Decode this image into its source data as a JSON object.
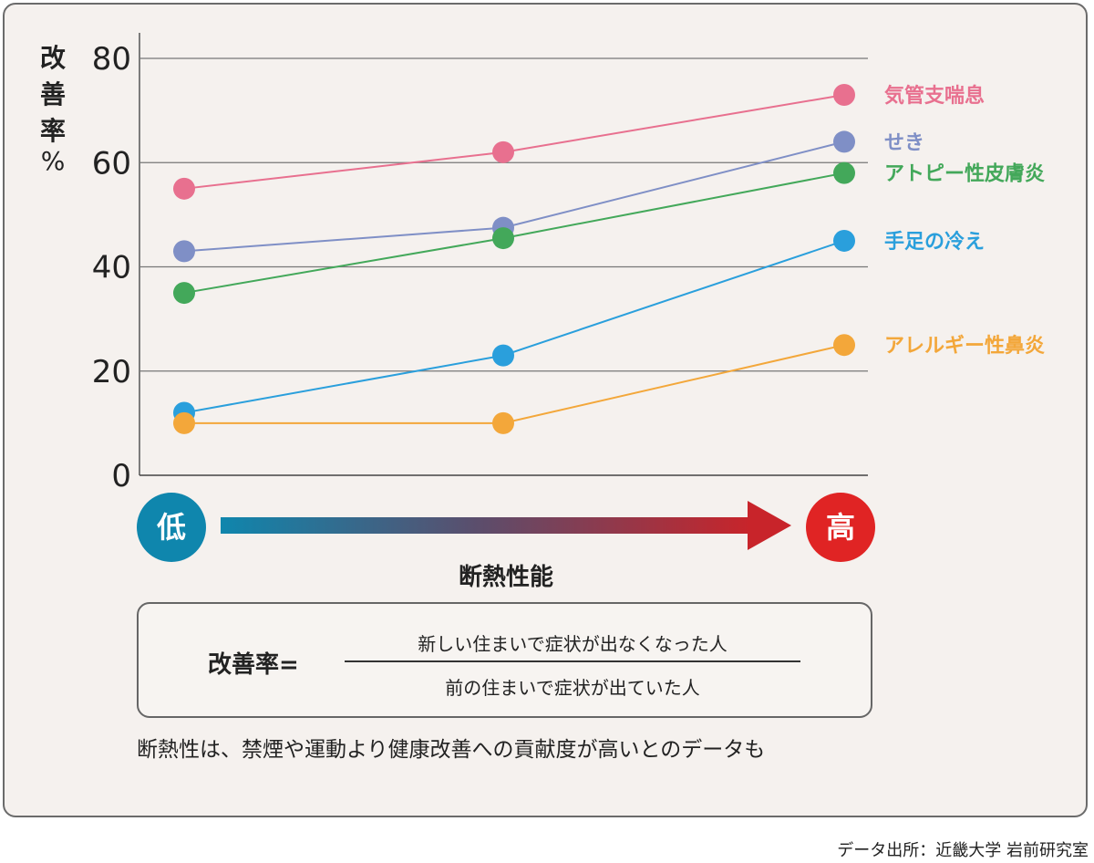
{
  "chart_data": {
    "type": "line",
    "ylabel": "改善率",
    "yunit": "%",
    "ylim": [
      0,
      80
    ],
    "yticks": [
      0,
      20,
      40,
      60,
      80
    ],
    "grid": true,
    "x": [
      1,
      2,
      3
    ],
    "series": [
      {
        "name": "気管支喘息",
        "color": "#e8708f",
        "values": [
          55,
          62,
          73
        ]
      },
      {
        "name": "せき",
        "color": "#7f8fc6",
        "values": [
          43,
          47.5,
          64
        ]
      },
      {
        "name": "アトピー性皮膚炎",
        "color": "#43a85a",
        "values": [
          35,
          45.5,
          58
        ]
      },
      {
        "name": "手足の冷え",
        "color": "#2a9fdc",
        "values": [
          12,
          23,
          45
        ]
      },
      {
        "name": "アレルギー性鼻炎",
        "color": "#f3a73a",
        "values": [
          10,
          10,
          25
        ]
      }
    ]
  },
  "axis": {
    "low_label": "低",
    "high_label": "高",
    "title": "断熱性能",
    "low_color": "#0f86ad",
    "high_color": "#e02424"
  },
  "formula": {
    "label": "改善率=",
    "numerator": "新しい住まいで症状が出なくなった人",
    "denominator": "前の住まいで症状が出ていた人"
  },
  "footnote": "断熱性は、禁煙や運動より健康改善への貢献度が高いとのデータも",
  "source": "データ出所：近畿大学 岩前研究室"
}
